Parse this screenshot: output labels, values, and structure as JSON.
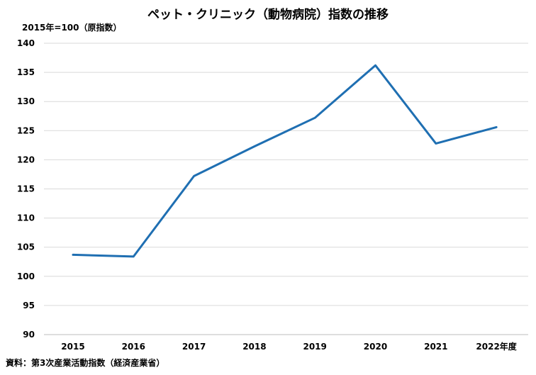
{
  "chart_data": {
    "type": "line",
    "title": "ペット・クリニック（動物病院）指数の推移",
    "ylabel": "2015年=100（原指数）",
    "source": "資料：第3次産業活動指数（経済産業省）",
    "categories": [
      "2015",
      "2016",
      "2017",
      "2018",
      "2019",
      "2020",
      "2021",
      "2022年度"
    ],
    "series": [
      {
        "values": [
          103.7,
          103.4,
          117.2,
          122.3,
          127.2,
          136.2,
          122.8,
          125.6
        ]
      }
    ],
    "ylim": [
      90,
      140
    ],
    "yticks": [
      90,
      95,
      100,
      105,
      110,
      115,
      120,
      125,
      130,
      135,
      140
    ],
    "grid": true,
    "line_color": "#1f6fb2"
  }
}
